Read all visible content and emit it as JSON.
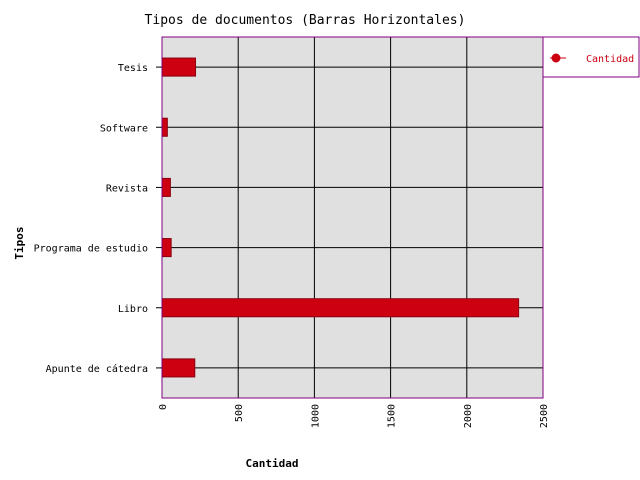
{
  "chart_data": {
    "type": "bar",
    "orientation": "horizontal",
    "title": "Tipos de documentos (Barras Horizontales)",
    "xlabel": "Cantidad",
    "ylabel": "Tipos",
    "categories": [
      "Tesis",
      "Software",
      "Revista",
      "Programa de estudio",
      "Libro",
      "Apunte de cátedra"
    ],
    "series": [
      {
        "name": "Cantidad",
        "values": [
          220,
          35,
          55,
          60,
          2340,
          215
        ]
      }
    ],
    "xlim": [
      0,
      2500
    ],
    "xticks": [
      "0",
      "500",
      "1000",
      "1500",
      "2000",
      "2500"
    ],
    "grid": true,
    "legend": "top-right",
    "colors": {
      "bar": "#cc0011",
      "bar_edge": "#8a0010",
      "plot_background": "#e0e0e0",
      "plot_border": "#800080",
      "grid": "#000000",
      "legend_text": "#cc0011"
    }
  }
}
